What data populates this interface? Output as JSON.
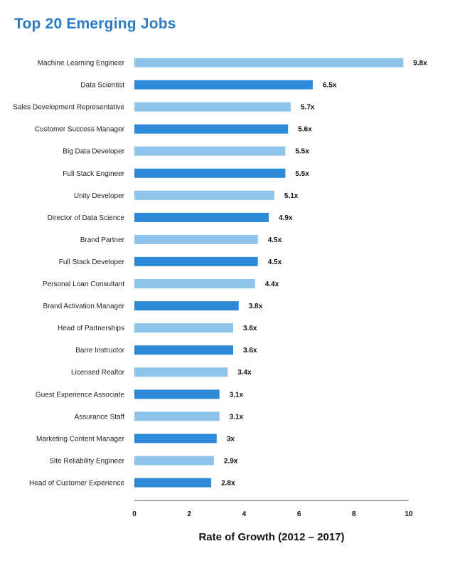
{
  "chart_data": {
    "type": "bar",
    "orientation": "horizontal",
    "title": "Top 20 Emerging Jobs",
    "xlabel": "Rate of Growth (2012 – 2017)",
    "ylabel": "",
    "xlim": [
      0,
      10
    ],
    "xticks": [
      0,
      2,
      4,
      6,
      8,
      10
    ],
    "grid": false,
    "categories": [
      "Machine Learning Engineer",
      "Data Scientist",
      "Sales Development Representative",
      "Customer Success Manager",
      "Big Data Developer",
      "Full Stack Engineer",
      "Unity Developer",
      "Director of Data Science",
      "Brand Partner",
      "Full Stack Developer",
      "Personal Loan Consultant",
      "Brand Activation Manager",
      "Head of Partnerships",
      "Barre Instructor",
      "Licensed Realtor",
      "Guest Experience Associate",
      "Assurance Staff",
      "Marketing Content Manager",
      "Site Reliability Engineer",
      "Head of Customer Experience"
    ],
    "values": [
      9.8,
      6.5,
      5.7,
      5.6,
      5.5,
      5.5,
      5.1,
      4.9,
      4.5,
      4.5,
      4.4,
      3.8,
      3.6,
      3.6,
      3.4,
      3.1,
      3.1,
      3,
      2.9,
      2.8
    ],
    "value_labels": [
      "9.8x",
      "6.5x",
      "5.7x",
      "5.6x",
      "5.5x",
      "5.5x",
      "5.1x",
      "4.9x",
      "4.5x",
      "4.5x",
      "4.4x",
      "3.8x",
      "3.6x",
      "3.6x",
      "3.4x",
      "3.1x",
      "3.1x",
      "3x",
      "2.9x",
      "2.8x"
    ],
    "colors": {
      "light": "#8ec4ea",
      "dark": "#2d8ad9",
      "axis": "#555555"
    }
  }
}
